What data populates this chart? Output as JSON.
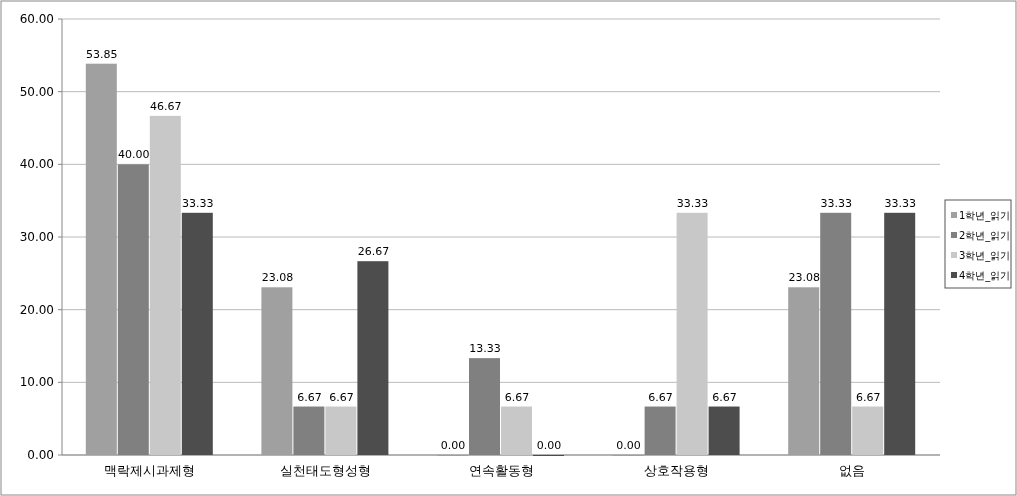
{
  "chart_data": {
    "type": "bar",
    "categories": [
      "맥락제시과제형",
      "실천태도형성형",
      "연속활동형",
      "상호작용형",
      "없음"
    ],
    "series": [
      {
        "name": "1학년_읽기",
        "color": "#a0a0a0",
        "values": [
          53.85,
          23.08,
          0,
          0,
          23.08
        ],
        "value_labels": [
          "53.85",
          "23.08",
          "0.00",
          "0.00",
          "23.08"
        ]
      },
      {
        "name": "2학년_읽기",
        "color": "#808080",
        "values": [
          40,
          6.67,
          13.33,
          6.67,
          33.33
        ],
        "value_labels": [
          "40.00",
          "6.67",
          "13.33",
          "6.67",
          "33.33"
        ]
      },
      {
        "name": "3학년_읽기",
        "color": "#c8c8c8",
        "values": [
          46.67,
          6.67,
          6.67,
          33.33,
          6.67
        ],
        "value_labels": [
          "46.67",
          "6.67",
          "6.67",
          "33.33",
          "6.67"
        ]
      },
      {
        "name": "4학년_읽기",
        "color": "#4d4d4d",
        "values": [
          33.33,
          26.67,
          0,
          6.67,
          33.33
        ],
        "value_labels": [
          "33.33",
          "26.67",
          "0.00",
          "6.67",
          "33.33"
        ]
      }
    ],
    "ylim": [
      0,
      60
    ],
    "yticks": [
      {
        "value": 0,
        "label": "0.00"
      },
      {
        "value": 10,
        "label": "10.00"
      },
      {
        "value": 20,
        "label": "20.00"
      },
      {
        "value": 30,
        "label": "30.00"
      },
      {
        "value": 40,
        "label": "40.00"
      },
      {
        "value": 50,
        "label": "50.00"
      },
      {
        "value": 60,
        "label": "60.00"
      }
    ],
    "grid": "y",
    "legend": "right"
  }
}
